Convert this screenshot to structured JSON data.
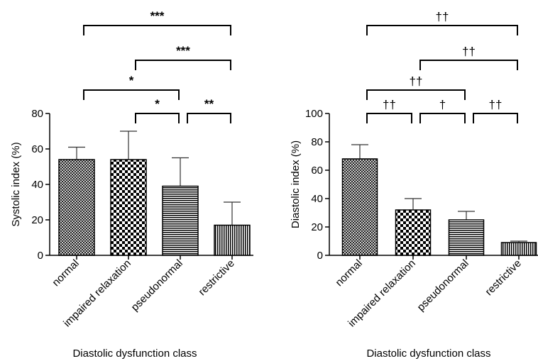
{
  "chart_data": [
    {
      "type": "bar",
      "xlabel": "Diastolic dysfunction class",
      "ylabel": "Systolic index (%)",
      "ylim": [
        0,
        80
      ],
      "yticks": [
        0,
        20,
        40,
        60,
        80
      ],
      "categories": [
        "normal",
        "impaired relaxation",
        "pseudonormal",
        "restrictive"
      ],
      "values": [
        54,
        54,
        39,
        17
      ],
      "error_upper": [
        61,
        70,
        55,
        30
      ],
      "patterns": [
        "crosshatch",
        "checker",
        "horizontal-lines",
        "vertical-lines"
      ],
      "significance": [
        {
          "from": 2,
          "to": 3,
          "label": "*"
        },
        {
          "from": 3,
          "to": 4,
          "label": "**"
        },
        {
          "from": 1,
          "to": 3,
          "label": "*"
        },
        {
          "from": 2,
          "to": 4,
          "label": "***"
        },
        {
          "from": 1,
          "to": 4,
          "label": "***"
        }
      ]
    },
    {
      "type": "bar",
      "xlabel": "Diastolic dysfunction class",
      "ylabel": "Diastolic index (%)",
      "ylim": [
        0,
        100
      ],
      "yticks": [
        0,
        20,
        40,
        60,
        80,
        100
      ],
      "categories": [
        "normal",
        "impaired relaxation",
        "pseudonormal",
        "restrictive"
      ],
      "values": [
        68,
        32,
        25,
        9
      ],
      "error_upper": [
        78,
        40,
        31,
        10
      ],
      "patterns": [
        "crosshatch",
        "checker",
        "horizontal-lines",
        "vertical-lines"
      ],
      "significance": [
        {
          "from": 1,
          "to": 2,
          "label": "††"
        },
        {
          "from": 2,
          "to": 3,
          "label": "†"
        },
        {
          "from": 3,
          "to": 4,
          "label": "††"
        },
        {
          "from": 1,
          "to": 3,
          "label": "††"
        },
        {
          "from": 2,
          "to": 4,
          "label": "††"
        },
        {
          "from": 1,
          "to": 4,
          "label": "††"
        }
      ]
    }
  ]
}
